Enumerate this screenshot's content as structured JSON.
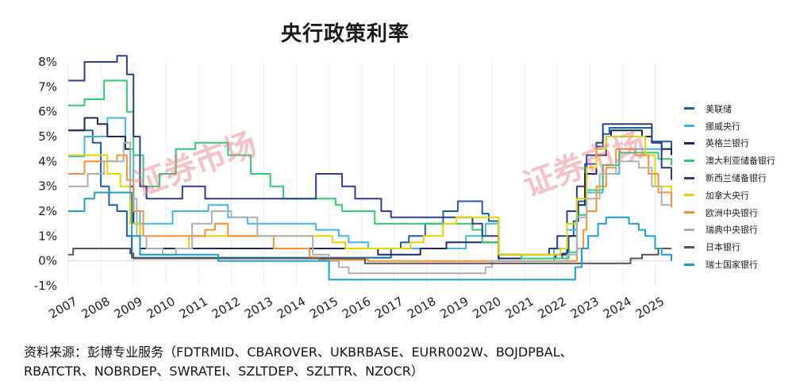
{
  "chart_data": {
    "type": "line",
    "title": "央行政策利率",
    "ylim": [
      -1,
      8
    ],
    "xlim": [
      2007,
      2025.5
    ],
    "y_ticks": [
      "8%",
      "7%",
      "6%",
      "5%",
      "4%",
      "3%",
      "2%",
      "1%",
      "0%",
      "-1%"
    ],
    "x_ticks": [
      "2007",
      "2008",
      "2009",
      "2010",
      "2011",
      "2012",
      "2013",
      "2014",
      "2015",
      "2016",
      "2017",
      "2018",
      "2019",
      "2020",
      "2021",
      "2022",
      "2023",
      "2024",
      "2025"
    ],
    "legend_position": "right",
    "grid": "vertical",
    "series": [
      {
        "name": "美联储",
        "color": "#1f5fa8",
        "points": [
          [
            2007,
            5.25
          ],
          [
            2007.6,
            5.25
          ],
          [
            2007.75,
            4.75
          ],
          [
            2008,
            3.0
          ],
          [
            2008.25,
            2.25
          ],
          [
            2008.5,
            2.0
          ],
          [
            2008.8,
            1.0
          ],
          [
            2008.95,
            0.13
          ],
          [
            2015.95,
            0.13
          ],
          [
            2016.9,
            0.5
          ],
          [
            2017.2,
            0.75
          ],
          [
            2017.45,
            1.0
          ],
          [
            2017.95,
            1.5
          ],
          [
            2018.5,
            2.0
          ],
          [
            2018.95,
            2.4
          ],
          [
            2019.5,
            2.4
          ],
          [
            2019.7,
            1.9
          ],
          [
            2019.9,
            1.6
          ],
          [
            2020.2,
            0.1
          ],
          [
            2022.15,
            0.3
          ],
          [
            2022.35,
            1.0
          ],
          [
            2022.5,
            1.6
          ],
          [
            2022.65,
            2.4
          ],
          [
            2022.85,
            3.9
          ],
          [
            2023.2,
            4.6
          ],
          [
            2023.4,
            5.1
          ],
          [
            2023.6,
            5.35
          ],
          [
            2024.7,
            5.35
          ],
          [
            2024.9,
            4.8
          ],
          [
            2025.5,
            4.35
          ]
        ]
      },
      {
        "name": "挪威央行",
        "color": "#3fb8e6",
        "points": [
          [
            2007,
            4.2
          ],
          [
            2007.5,
            5.0
          ],
          [
            2008.2,
            5.75
          ],
          [
            2008.5,
            5.75
          ],
          [
            2008.75,
            4.5
          ],
          [
            2009,
            2.0
          ],
          [
            2009.2,
            1.5
          ],
          [
            2009.8,
            1.5
          ],
          [
            2010.2,
            2.0
          ],
          [
            2011.3,
            2.25
          ],
          [
            2011.9,
            1.75
          ],
          [
            2012.5,
            1.5
          ],
          [
            2014.3,
            1.5
          ],
          [
            2014.6,
            1.25
          ],
          [
            2015.3,
            1.0
          ],
          [
            2015.6,
            0.75
          ],
          [
            2016.2,
            0.5
          ],
          [
            2018.7,
            0.5
          ],
          [
            2019.2,
            1.0
          ],
          [
            2019.8,
            1.5
          ],
          [
            2020.2,
            0.0
          ],
          [
            2021.7,
            0.0
          ],
          [
            2021.9,
            0.5
          ],
          [
            2022.3,
            1.25
          ],
          [
            2022.6,
            2.25
          ],
          [
            2022.9,
            2.75
          ],
          [
            2023.4,
            3.5
          ],
          [
            2023.9,
            4.5
          ],
          [
            2025.5,
            4.5
          ]
        ]
      },
      {
        "name": "英格兰银行",
        "color": "#1d2b5e",
        "points": [
          [
            2007,
            5.25
          ],
          [
            2007.5,
            5.75
          ],
          [
            2007.9,
            5.5
          ],
          [
            2008.2,
            5.0
          ],
          [
            2008.75,
            4.5
          ],
          [
            2008.9,
            3.0
          ],
          [
            2009.0,
            1.5
          ],
          [
            2009.2,
            0.5
          ],
          [
            2016.5,
            0.25
          ],
          [
            2017.8,
            0.5
          ],
          [
            2018.6,
            0.75
          ],
          [
            2020.2,
            0.1
          ],
          [
            2021.95,
            0.25
          ],
          [
            2022.3,
            1.0
          ],
          [
            2022.6,
            2.25
          ],
          [
            2022.85,
            3.5
          ],
          [
            2023.2,
            4.25
          ],
          [
            2023.5,
            5.0
          ],
          [
            2023.65,
            5.25
          ],
          [
            2024.6,
            5.0
          ],
          [
            2024.9,
            4.75
          ],
          [
            2025.2,
            4.5
          ],
          [
            2025.5,
            4.25
          ]
        ]
      },
      {
        "name": "澳大利亚储备银行",
        "color": "#2ecc71",
        "points": [
          [
            2007,
            6.25
          ],
          [
            2007.5,
            6.5
          ],
          [
            2008.1,
            7.25
          ],
          [
            2008.6,
            7.25
          ],
          [
            2008.8,
            6.0
          ],
          [
            2009.0,
            4.25
          ],
          [
            2009.3,
            3.0
          ],
          [
            2009.8,
            3.5
          ],
          [
            2010.3,
            4.5
          ],
          [
            2010.9,
            4.75
          ],
          [
            2011.9,
            4.25
          ],
          [
            2012.6,
            3.5
          ],
          [
            2013.2,
            3.0
          ],
          [
            2013.6,
            2.5
          ],
          [
            2015.2,
            2.25
          ],
          [
            2015.4,
            2.0
          ],
          [
            2016.4,
            1.5
          ],
          [
            2019.4,
            1.25
          ],
          [
            2019.7,
            0.75
          ],
          [
            2020.2,
            0.25
          ],
          [
            2020.9,
            0.1
          ],
          [
            2022.35,
            0.35
          ],
          [
            2022.6,
            1.85
          ],
          [
            2022.9,
            2.85
          ],
          [
            2023.4,
            3.85
          ],
          [
            2023.9,
            4.35
          ],
          [
            2025.1,
            4.1
          ],
          [
            2025.5,
            3.85
          ]
        ]
      },
      {
        "name": "新西兰储备银行",
        "color": "#2a3f8f",
        "points": [
          [
            2007,
            7.25
          ],
          [
            2007.5,
            8.0
          ],
          [
            2008.5,
            8.25
          ],
          [
            2008.8,
            7.5
          ],
          [
            2009.0,
            5.0
          ],
          [
            2009.2,
            3.0
          ],
          [
            2009.4,
            2.5
          ],
          [
            2010.5,
            3.0
          ],
          [
            2011.2,
            2.5
          ],
          [
            2014.1,
            2.5
          ],
          [
            2014.6,
            3.5
          ],
          [
            2015.4,
            3.0
          ],
          [
            2015.8,
            2.5
          ],
          [
            2016.6,
            2.0
          ],
          [
            2016.9,
            1.75
          ],
          [
            2019.4,
            1.5
          ],
          [
            2019.7,
            1.0
          ],
          [
            2020.2,
            0.25
          ],
          [
            2021.75,
            0.5
          ],
          [
            2022.0,
            1.0
          ],
          [
            2022.3,
            2.0
          ],
          [
            2022.6,
            3.0
          ],
          [
            2022.9,
            4.25
          ],
          [
            2023.2,
            4.75
          ],
          [
            2023.4,
            5.5
          ],
          [
            2024.6,
            5.5
          ],
          [
            2024.9,
            4.75
          ],
          [
            2025.2,
            3.75
          ],
          [
            2025.5,
            3.25
          ]
        ]
      },
      {
        "name": "加拿大央行",
        "color": "#e6d500",
        "points": [
          [
            2007,
            4.25
          ],
          [
            2007.9,
            4.25
          ],
          [
            2008.2,
            3.5
          ],
          [
            2008.6,
            3.0
          ],
          [
            2008.9,
            1.5
          ],
          [
            2009.2,
            0.25
          ],
          [
            2010.3,
            0.5
          ],
          [
            2010.7,
            1.0
          ],
          [
            2014.9,
            1.0
          ],
          [
            2015.1,
            0.75
          ],
          [
            2015.5,
            0.5
          ],
          [
            2017.5,
            0.75
          ],
          [
            2017.9,
            1.0
          ],
          [
            2018.5,
            1.5
          ],
          [
            2018.9,
            1.75
          ],
          [
            2020.0,
            1.75
          ],
          [
            2020.2,
            0.25
          ],
          [
            2022.1,
            0.5
          ],
          [
            2022.3,
            1.5
          ],
          [
            2022.6,
            2.5
          ],
          [
            2022.9,
            3.75
          ],
          [
            2023.2,
            4.5
          ],
          [
            2023.5,
            5.0
          ],
          [
            2024.4,
            5.0
          ],
          [
            2024.7,
            4.25
          ],
          [
            2025.0,
            3.0
          ],
          [
            2025.5,
            2.75
          ]
        ]
      },
      {
        "name": "欧洲中央银行",
        "color": "#f39237",
        "points": [
          [
            2007,
            3.5
          ],
          [
            2007.5,
            4.0
          ],
          [
            2008.5,
            4.25
          ],
          [
            2008.8,
            3.25
          ],
          [
            2009.0,
            2.0
          ],
          [
            2009.3,
            1.0
          ],
          [
            2011.2,
            1.25
          ],
          [
            2011.5,
            1.5
          ],
          [
            2011.9,
            1.0
          ],
          [
            2013.3,
            0.5
          ],
          [
            2014.4,
            0.15
          ],
          [
            2014.7,
            0.05
          ],
          [
            2016.2,
            0.0
          ],
          [
            2022.5,
            0.0
          ],
          [
            2022.6,
            0.5
          ],
          [
            2022.8,
            1.25
          ],
          [
            2022.9,
            2.0
          ],
          [
            2023.2,
            3.0
          ],
          [
            2023.5,
            3.75
          ],
          [
            2023.8,
            4.5
          ],
          [
            2024.4,
            4.25
          ],
          [
            2024.8,
            3.5
          ],
          [
            2025.1,
            2.75
          ],
          [
            2025.5,
            2.15
          ]
        ]
      },
      {
        "name": "瑞典中央银行",
        "color": "#b0b0b0",
        "points": [
          [
            2007,
            3.0
          ],
          [
            2007.6,
            3.5
          ],
          [
            2008.1,
            4.0
          ],
          [
            2008.7,
            4.75
          ],
          [
            2008.9,
            2.5
          ],
          [
            2009.1,
            1.0
          ],
          [
            2009.4,
            0.5
          ],
          [
            2009.9,
            0.25
          ],
          [
            2010.3,
            0.5
          ],
          [
            2010.8,
            1.5
          ],
          [
            2011.4,
            2.0
          ],
          [
            2012.0,
            1.75
          ],
          [
            2012.8,
            1.0
          ],
          [
            2014.5,
            0.25
          ],
          [
            2015.0,
            0.0
          ],
          [
            2015.3,
            -0.25
          ],
          [
            2015.6,
            -0.5
          ],
          [
            2019.8,
            -0.25
          ],
          [
            2020.0,
            0.0
          ],
          [
            2022.3,
            0.25
          ],
          [
            2022.6,
            1.75
          ],
          [
            2022.9,
            2.5
          ],
          [
            2023.3,
            3.5
          ],
          [
            2023.8,
            4.0
          ],
          [
            2024.5,
            3.75
          ],
          [
            2024.9,
            3.0
          ],
          [
            2025.2,
            2.25
          ],
          [
            2025.5,
            2.25
          ]
        ]
      },
      {
        "name": "日本银行",
        "color": "#555555",
        "points": [
          [
            2007,
            0.25
          ],
          [
            2007.15,
            0.5
          ],
          [
            2008.8,
            0.5
          ],
          [
            2008.9,
            0.3
          ],
          [
            2009.0,
            0.1
          ],
          [
            2016.0,
            0.1
          ],
          [
            2016.1,
            -0.1
          ],
          [
            2024.2,
            -0.1
          ],
          [
            2024.25,
            0.1
          ],
          [
            2024.6,
            0.25
          ],
          [
            2025.1,
            0.5
          ],
          [
            2025.5,
            0.5
          ]
        ]
      },
      {
        "name": "瑞士国家银行",
        "color": "#1aa0d0",
        "points": [
          [
            2007,
            2.0
          ],
          [
            2007.5,
            2.5
          ],
          [
            2007.8,
            2.75
          ],
          [
            2008.8,
            2.75
          ],
          [
            2008.95,
            1.0
          ],
          [
            2009.2,
            0.25
          ],
          [
            2011.6,
            0.0
          ],
          [
            2014.9,
            0.0
          ],
          [
            2015.0,
            -0.75
          ],
          [
            2022.4,
            -0.75
          ],
          [
            2022.55,
            -0.25
          ],
          [
            2022.75,
            0.5
          ],
          [
            2022.95,
            1.0
          ],
          [
            2023.25,
            1.5
          ],
          [
            2023.5,
            1.75
          ],
          [
            2024.2,
            1.5
          ],
          [
            2024.5,
            1.25
          ],
          [
            2024.7,
            1.0
          ],
          [
            2025.0,
            0.5
          ],
          [
            2025.2,
            0.25
          ],
          [
            2025.5,
            0.0
          ]
        ]
      }
    ]
  },
  "watermarks": {
    "left": "证券市场",
    "right": "证券市场"
  },
  "source": {
    "line1": "资料来源：彭博专业服务（FDTRMID、CBAROVER、UKBRBASE、EURR002W、BOJDPBAL、",
    "line2": "RBATCTR、NOBRDEP、SWRATEI、SZLTDEP、SZLTTR、NZOCR）"
  }
}
